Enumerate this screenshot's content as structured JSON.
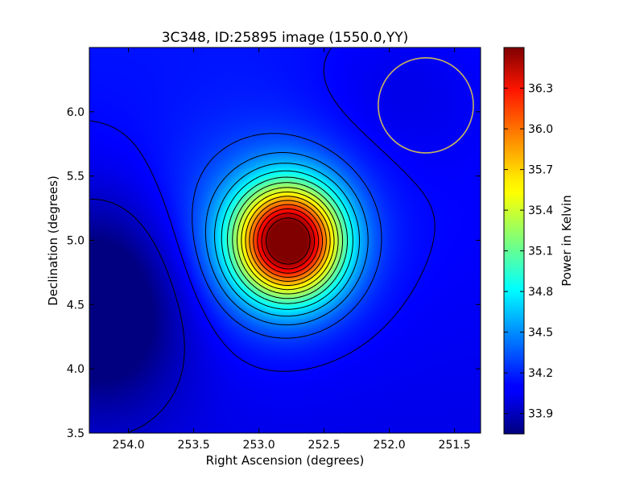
{
  "chart_data": {
    "type": "heatmap",
    "title": "3C348, ID:25895 image (1550.0,YY)",
    "xlabel": "Right Ascension (degrees)",
    "ylabel": "Declination (degrees)",
    "xlim": [
      254.3,
      251.3
    ],
    "ylim": [
      3.5,
      6.5
    ],
    "x_ticks": [
      {
        "value": 254.0,
        "label": "254.0"
      },
      {
        "value": 253.5,
        "label": "253.5"
      },
      {
        "value": 253.0,
        "label": "253.0"
      },
      {
        "value": 252.5,
        "label": "252.5"
      },
      {
        "value": 252.0,
        "label": "252.0"
      },
      {
        "value": 251.5,
        "label": "251.5"
      }
    ],
    "y_ticks": [
      {
        "value": 3.5,
        "label": "3.5"
      },
      {
        "value": 4.0,
        "label": "4.0"
      },
      {
        "value": 4.5,
        "label": "4.5"
      },
      {
        "value": 5.0,
        "label": "5.0"
      },
      {
        "value": 5.5,
        "label": "5.5"
      },
      {
        "value": 6.0,
        "label": "6.0"
      }
    ],
    "colorbar": {
      "label": "Power in Kelvin",
      "range": [
        33.75,
        36.6
      ],
      "colormap": "jet",
      "ticks": [
        {
          "value": 33.9,
          "label": "33.9"
        },
        {
          "value": 34.2,
          "label": "34.2"
        },
        {
          "value": 34.5,
          "label": "34.5"
        },
        {
          "value": 34.8,
          "label": "34.8"
        },
        {
          "value": 35.1,
          "label": "35.1"
        },
        {
          "value": 35.4,
          "label": "35.4"
        },
        {
          "value": 35.7,
          "label": "35.7"
        },
        {
          "value": 36.0,
          "label": "36.0"
        },
        {
          "value": 36.3,
          "label": "36.3"
        }
      ]
    },
    "peak": {
      "ra": 252.77,
      "dec": 4.99,
      "value": 36.6
    },
    "minimum": {
      "ra": 254.2,
      "dec": 4.5,
      "value": 33.75
    },
    "background_level": 34.1,
    "contours": "black iso-power contour lines",
    "marker_circle": {
      "ra": 251.72,
      "dec": 6.05,
      "radius_deg": 0.37,
      "color": "#c8b460"
    }
  }
}
